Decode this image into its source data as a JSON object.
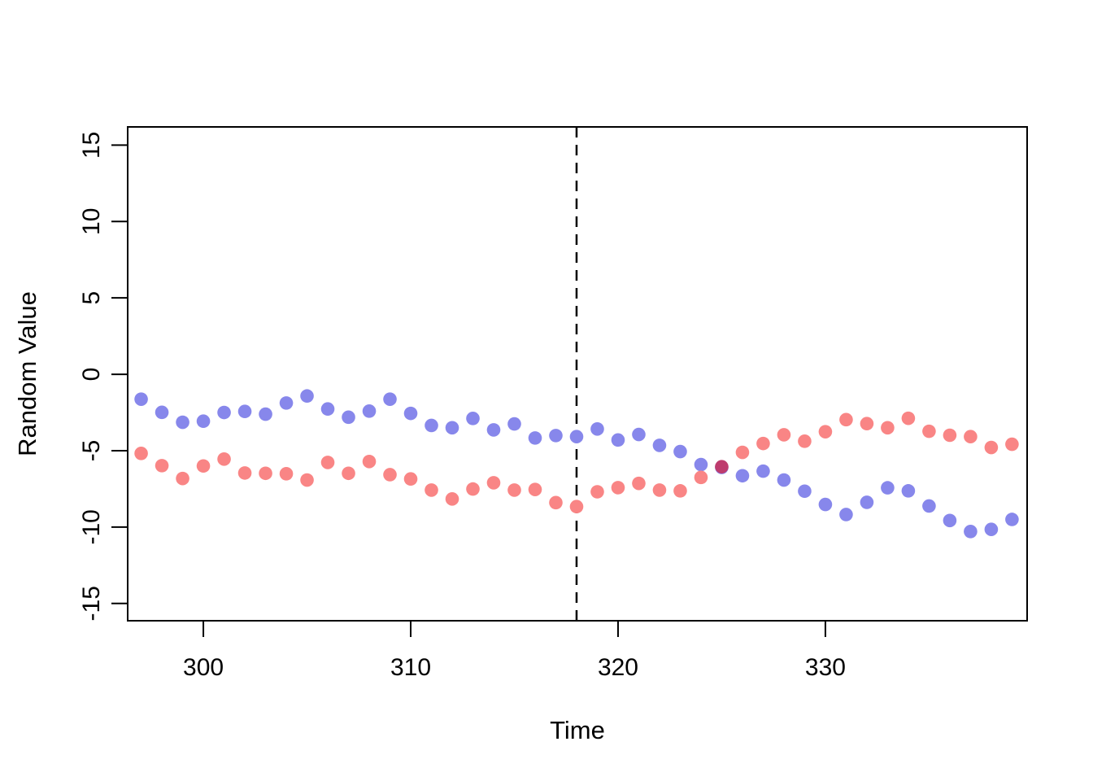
{
  "figure": {
    "background": "#FFFFFF"
  },
  "chart_data": {
    "type": "scatter",
    "title": "",
    "xlabel": "Time",
    "ylabel": "Random Value",
    "x": [
      297,
      298,
      299,
      300,
      301,
      302,
      303,
      304,
      305,
      306,
      307,
      308,
      309,
      310,
      311,
      312,
      313,
      314,
      315,
      316,
      317,
      318,
      319,
      320,
      321,
      322,
      323,
      324,
      325,
      326,
      327,
      328,
      329,
      330,
      331,
      332,
      333,
      334,
      335,
      336,
      337,
      338,
      339
    ],
    "series": [
      {
        "name": "blue-series",
        "color": "#8787EB",
        "values": [
          -1.63,
          -2.49,
          -3.14,
          -3.07,
          -2.5,
          -2.43,
          -2.61,
          -1.88,
          -1.42,
          -2.27,
          -2.81,
          -2.41,
          -1.63,
          -2.56,
          -3.35,
          -3.5,
          -2.89,
          -3.64,
          -3.25,
          -4.17,
          -4.01,
          -4.08,
          -3.58,
          -4.3,
          -3.94,
          -4.65,
          -5.06,
          -5.91,
          -6.1,
          -6.64,
          -6.34,
          -6.92,
          -7.65,
          -8.52,
          -9.18,
          -8.38,
          -7.43,
          -7.63,
          -8.62,
          -9.57,
          -10.29,
          -10.15,
          -9.5
        ]
      },
      {
        "name": "red-series",
        "color": "#F98585",
        "values": [
          -5.18,
          -5.98,
          -6.82,
          -6.0,
          -5.55,
          -6.46,
          -6.48,
          -6.51,
          -6.92,
          -5.77,
          -6.48,
          -5.71,
          -6.57,
          -6.85,
          -7.58,
          -8.16,
          -7.51,
          -7.1,
          -7.58,
          -7.54,
          -8.4,
          -8.66,
          -7.69,
          -7.42,
          -7.14,
          -7.58,
          -7.63,
          -6.75,
          -6.05,
          -5.11,
          -4.53,
          -3.96,
          -4.38,
          -3.76,
          -2.97,
          -3.23,
          -3.5,
          -2.88,
          -3.73,
          -3.99,
          -4.08,
          -4.79,
          -4.58
        ]
      }
    ],
    "overlap_point": {
      "x": 325,
      "value": -6.05,
      "color": "#BE3C6E"
    },
    "vline": {
      "x": 318,
      "style": "dashed",
      "color": "#000000"
    },
    "xticks": [
      300,
      310,
      320,
      330
    ],
    "yticks": [
      -15,
      -10,
      -5,
      0,
      5,
      10,
      15
    ],
    "xlim": [
      296.35,
      339.73
    ],
    "ylim": [
      -16.13,
      16.19
    ],
    "grid": false,
    "legend": null
  }
}
